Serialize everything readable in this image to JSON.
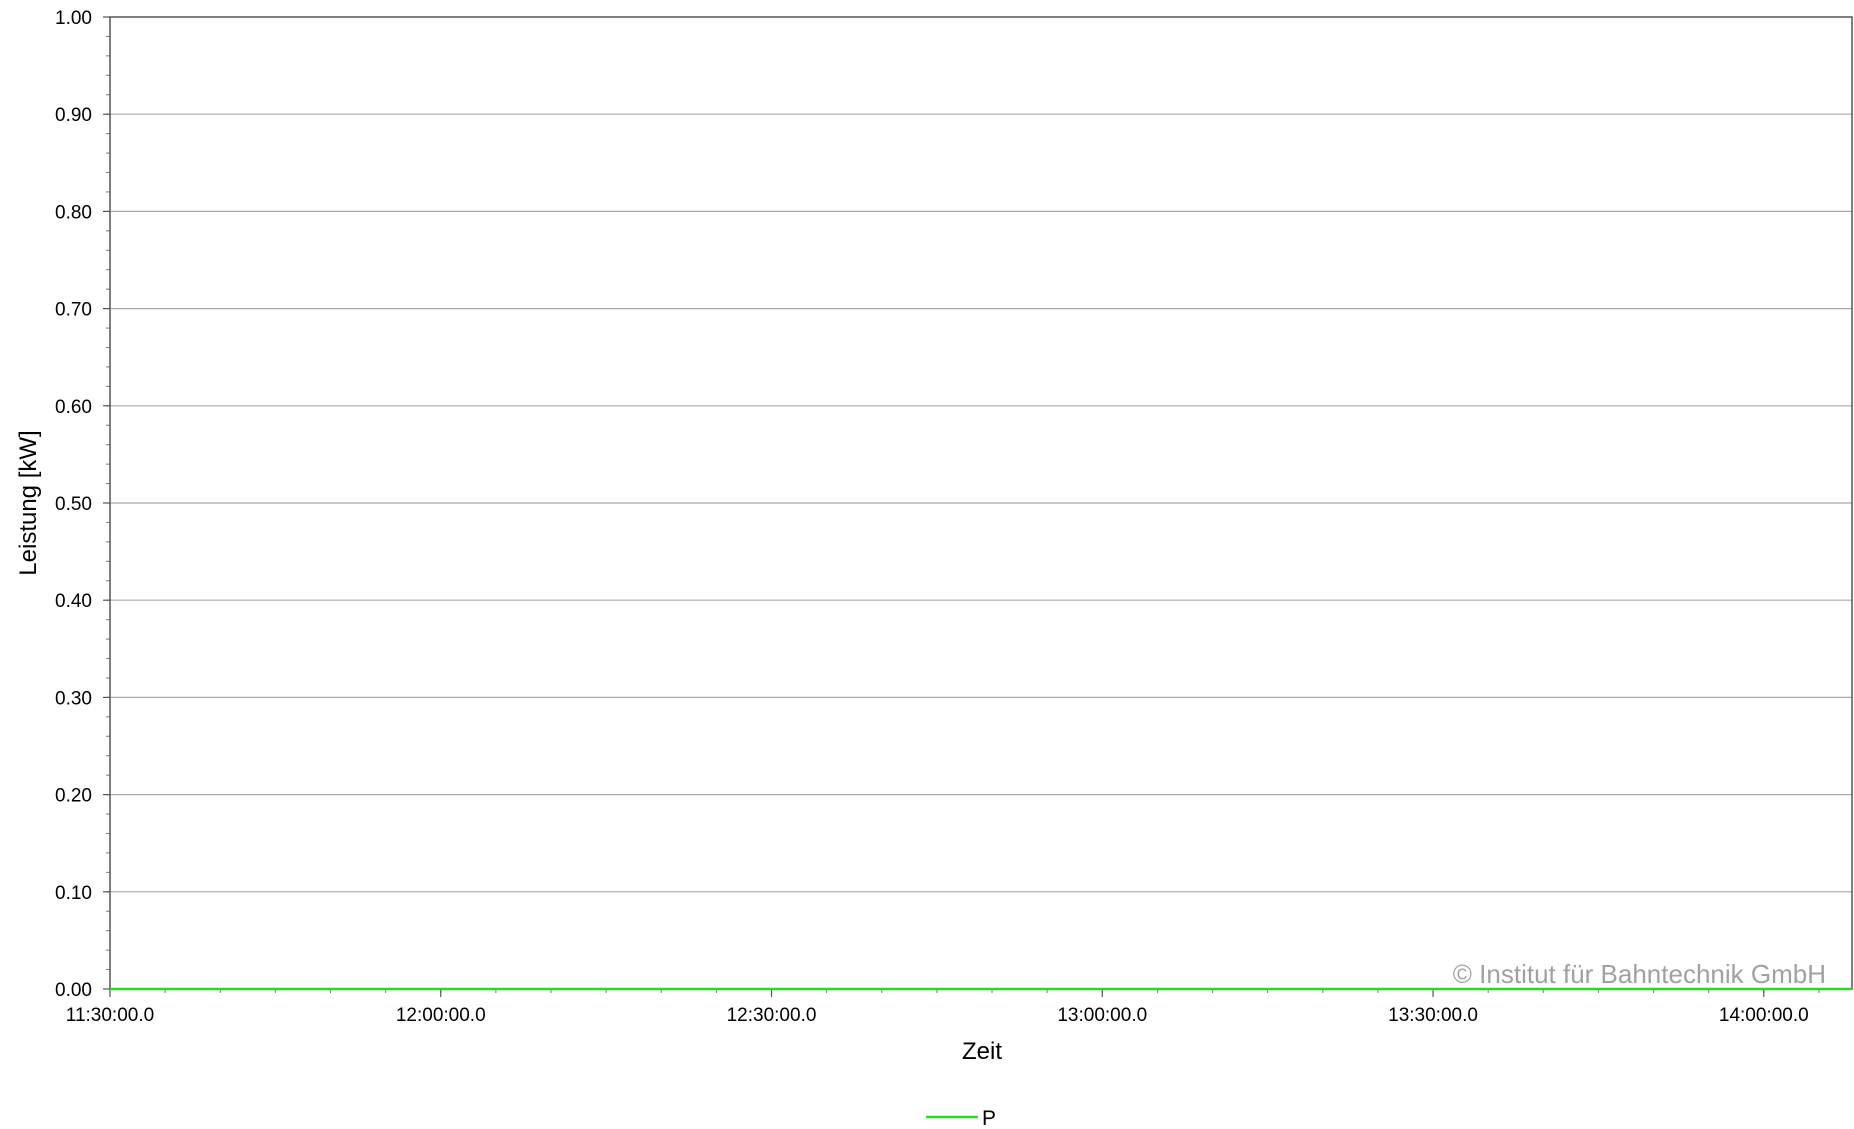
{
  "chart_data": {
    "type": "line",
    "xlabel": "Zeit",
    "ylabel": "Leistung [kW]",
    "ylim": [
      0,
      1.0
    ],
    "xlim": [
      "11:30:00.0",
      "14:08:00.0"
    ],
    "y_ticks": [
      "0.00",
      "0.10",
      "0.20",
      "0.30",
      "0.40",
      "0.50",
      "0.60",
      "0.70",
      "0.80",
      "0.90",
      "1.00"
    ],
    "x_ticks": [
      "11:30:00.0",
      "12:00:00.0",
      "12:30:00.0",
      "13:00:00.0",
      "13:30:00.0",
      "14:00:00.0"
    ],
    "grid": true,
    "legend_position": "bottom-center",
    "series": [
      {
        "name": "P",
        "color": "#22dd22",
        "x": [
          "11:30:00.0",
          "14:08:00.0"
        ],
        "values": [
          0,
          0
        ]
      }
    ],
    "watermark": "© Institut für Bahntechnik GmbH"
  },
  "colors": {
    "grid": "#a8a8a8",
    "axis": "#555555",
    "series_P": "#22dd22",
    "watermark": "#a0a0a0"
  }
}
